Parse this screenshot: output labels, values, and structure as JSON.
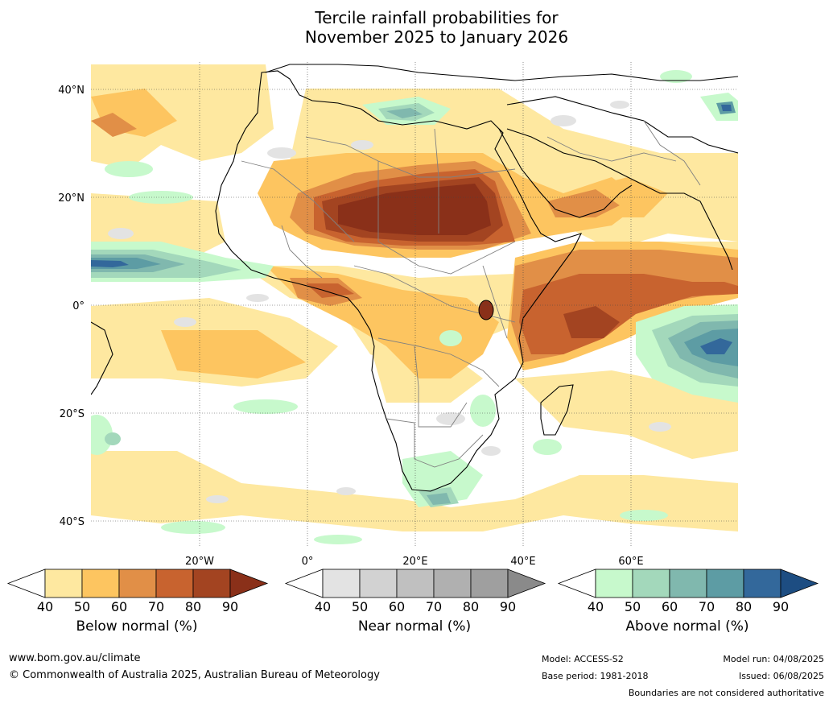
{
  "title": {
    "line1": "Tercile rainfall probabilities for",
    "line2": "November 2025 to January 2026"
  },
  "map": {
    "lat_labels": [
      "40°N",
      "20°N",
      "0°",
      "20°S",
      "40°S"
    ],
    "lon_labels": [
      "20°W",
      "0°",
      "20°E",
      "40°E",
      "60°E"
    ]
  },
  "colorbars": [
    {
      "label": "Below normal (%)",
      "ticks": [
        "40",
        "50",
        "60",
        "70",
        "80",
        "90"
      ],
      "colors": [
        "#ffffff",
        "#fee8a0",
        "#fdc560",
        "#e18f47",
        "#c8632f",
        "#a34421",
        "#8a3019"
      ]
    },
    {
      "label": "Near normal (%)",
      "ticks": [
        "40",
        "50",
        "60",
        "70",
        "80",
        "90"
      ],
      "colors": [
        "#ffffff",
        "#e3e3e3",
        "#d2d2d2",
        "#c0c0c0",
        "#b0b0b0",
        "#9f9f9f",
        "#8a8a8a"
      ]
    },
    {
      "label": "Above normal (%)",
      "ticks": [
        "40",
        "50",
        "60",
        "70",
        "80",
        "90"
      ],
      "colors": [
        "#ffffff",
        "#c7f9cc",
        "#a3d8bb",
        "#80b8ae",
        "#5d9ca4",
        "#33689b",
        "#1d4d82"
      ]
    }
  ],
  "footer": {
    "website": "www.bom.gov.au/climate",
    "copyright": "© Commonwealth of Australia 2025, Australian Bureau of Meteorology",
    "model": "Model: ACCESS-S2",
    "base_period": "Base period: 1981-2018",
    "model_run": "Model run: 04/08/2025",
    "issued": "Issued: 06/08/2025",
    "disclaimer": "Boundaries are not considered authoritative"
  }
}
